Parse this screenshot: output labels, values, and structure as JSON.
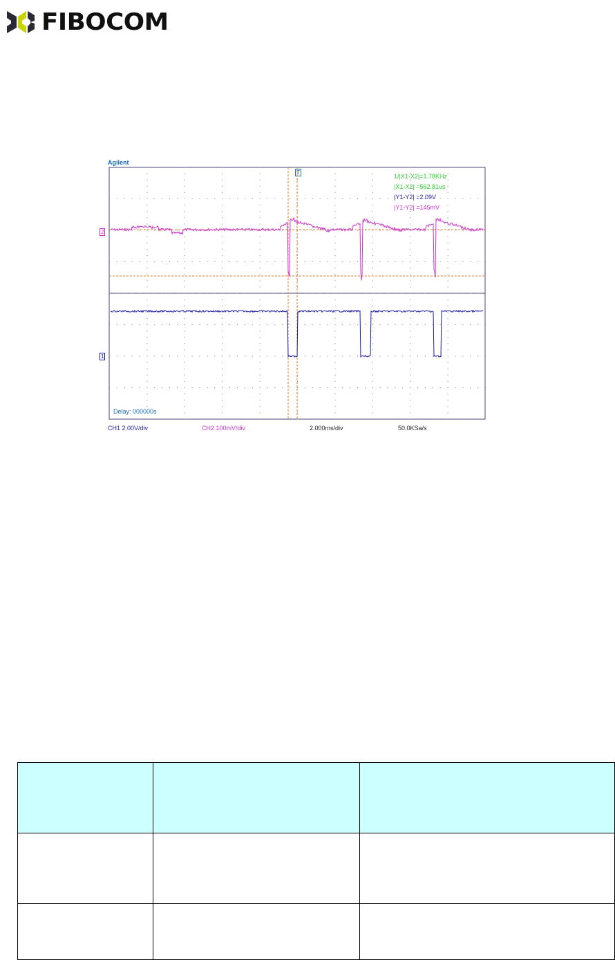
{
  "header": {
    "logo_text": "FIBOCOM"
  },
  "scope": {
    "brand": "Agilent",
    "measurements": [
      {
        "text": "1/|X1-X2|=1.78KHz",
        "color": "#33cc33"
      },
      {
        "text": "|X1-X2|  =562.81us",
        "color": "#33cc33"
      },
      {
        "text": "|Y1-Y2|  =2.09V",
        "color": "#1a1aa8"
      },
      {
        "text": "|Y1-Y2|  =145mV",
        "color": "#cc33cc"
      }
    ],
    "delay": "Delay: 000000s",
    "ch1_marker": "1",
    "ch2_marker": "2",
    "cursor_label": "T",
    "footer": {
      "ch1": "CH1 2.00V/div",
      "ch2": "CH2 100mV/div",
      "timebase": "2.000ms/div",
      "sample_rate": "50.0KSa/s"
    },
    "colors": {
      "ch1": "#1a1aa8",
      "ch2": "#cc33cc",
      "cursor": "#e07a2a",
      "grid_border": "#6666aa"
    }
  },
  "table": {
    "headers": [
      "",
      "",
      ""
    ],
    "rows": [
      [
        "",
        "",
        ""
      ],
      [
        "",
        "",
        ""
      ]
    ],
    "header_color": "#ccffff"
  }
}
